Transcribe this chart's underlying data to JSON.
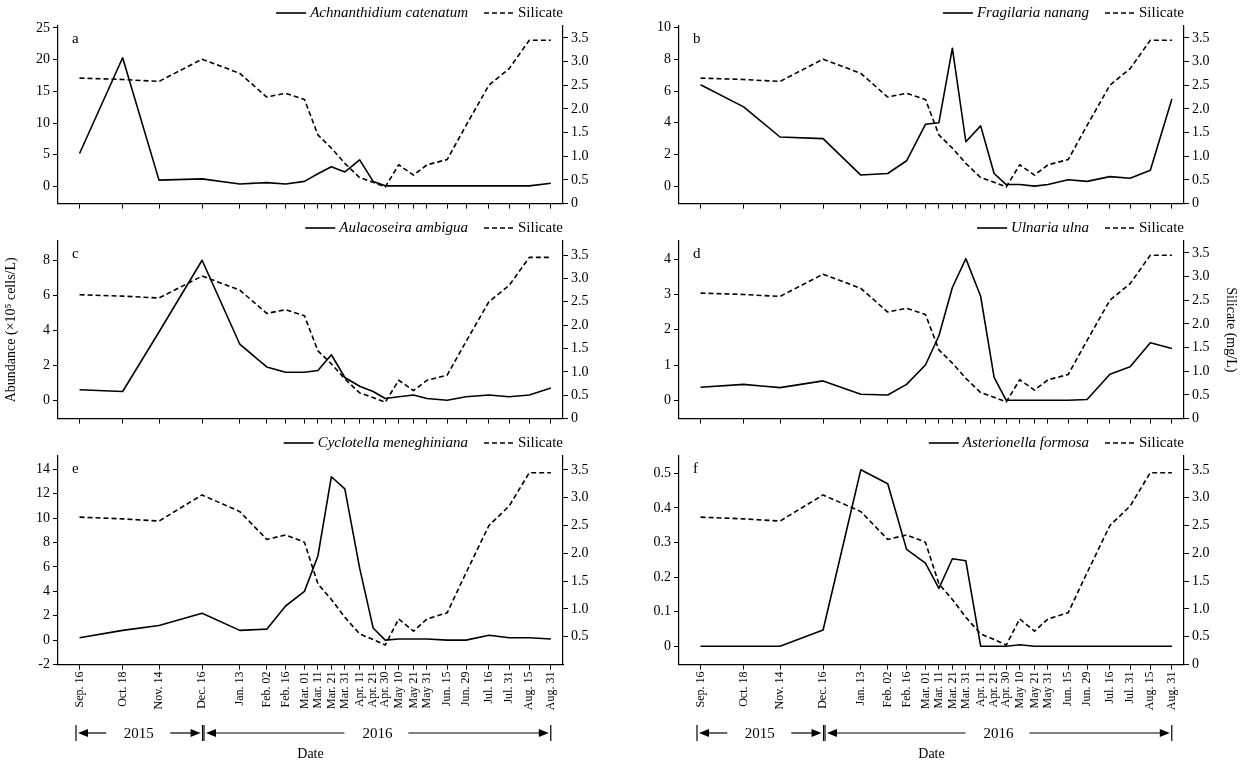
{
  "chart_data": [
    {
      "type": "line",
      "annotations": [
        "a"
      ],
      "x": [
        "2015-09-16",
        "2015-10-18",
        "2015-11-14",
        "2015-12-16",
        "2016-01-13",
        "2016-02-02",
        "2016-02-16",
        "2016-03-01",
        "2016-03-11",
        "2016-03-21",
        "2016-03-31",
        "2016-04-11",
        "2016-04-21",
        "2016-04-30",
        "2016-05-10",
        "2016-05-21",
        "2016-05-31",
        "2016-06-15",
        "2016-06-29",
        "2016-07-16",
        "2016-07-31",
        "2016-08-15",
        "2016-08-31"
      ],
      "series": [
        {
          "name": "Achnanthidium catenatum",
          "color": "#000000",
          "line_style": "solid",
          "values": [
            5.2,
            20.3,
            1.0,
            1.2,
            0.4,
            0.6,
            0.4,
            0.8,
            2.0,
            3.1,
            2.3,
            4.2,
            0.8,
            0.1,
            0.1,
            0.1,
            0.1,
            0.1,
            0.1,
            0.1,
            0.1,
            0.1,
            0.5
          ]
        },
        {
          "name": "Silicate",
          "color": "#000000",
          "line_style": "dashed",
          "axis": "y2",
          "values": [
            2.65,
            2.62,
            2.58,
            3.05,
            2.75,
            2.25,
            2.33,
            2.2,
            1.45,
            1.17,
            0.85,
            0.55,
            0.45,
            0.35,
            0.82,
            0.6,
            0.82,
            0.93,
            1.65,
            2.5,
            2.85,
            3.45,
            3.45
          ]
        }
      ],
      "xlim": [
        "2015-08-31",
        "2016-09-09"
      ],
      "xticks": [
        {
          "value": "2015-09-16",
          "label": null
        },
        {
          "value": "2015-10-18",
          "label": null
        },
        {
          "value": "2015-11-14",
          "label": null
        },
        {
          "value": "2015-12-16",
          "label": null
        },
        {
          "value": "2016-01-13",
          "label": null
        },
        {
          "value": "2016-02-02",
          "label": null
        },
        {
          "value": "2016-02-16",
          "label": null
        },
        {
          "value": "2016-03-01",
          "label": null
        },
        {
          "value": "2016-03-11",
          "label": null
        },
        {
          "value": "2016-03-21",
          "label": null
        },
        {
          "value": "2016-03-31",
          "label": null
        },
        {
          "value": "2016-04-11",
          "label": null
        },
        {
          "value": "2016-04-21",
          "label": null
        },
        {
          "value": "2016-04-30",
          "label": null
        },
        {
          "value": "2016-05-10",
          "label": null
        },
        {
          "value": "2016-05-21",
          "label": null
        },
        {
          "value": "2016-05-31",
          "label": null
        },
        {
          "value": "2016-06-15",
          "label": null
        },
        {
          "value": "2016-06-29",
          "label": null
        },
        {
          "value": "2016-07-16",
          "label": null
        },
        {
          "value": "2016-07-31",
          "label": null
        },
        {
          "value": "2016-08-15",
          "label": null
        },
        {
          "value": "2016-08-31",
          "label": null
        }
      ],
      "ylim": [
        -2.7,
        25.3
      ],
      "yticks": [
        0,
        5,
        10,
        15,
        20,
        25
      ],
      "y2lim": [
        0,
        3.75
      ],
      "y2ticks": [
        {
          "value": 0,
          "label": "0"
        },
        {
          "value": 0.5,
          "label": "0.5"
        },
        {
          "value": 1,
          "label": "1.0"
        },
        {
          "value": 1.5,
          "label": "1.5"
        },
        {
          "value": 2,
          "label": "2.0"
        },
        {
          "value": 2.5,
          "label": "2.5"
        },
        {
          "value": 3,
          "label": "3.0"
        },
        {
          "value": 3.5,
          "label": "3.5"
        }
      ],
      "tick_labels": "y",
      "legend": "top right",
      "marker": "none"
    },
    {
      "type": "line",
      "annotations": [
        "b"
      ],
      "x": [
        "2015-09-16",
        "2015-10-18",
        "2015-11-14",
        "2015-12-16",
        "2016-01-13",
        "2016-02-02",
        "2016-02-16",
        "2016-03-01",
        "2016-03-11",
        "2016-03-21",
        "2016-03-31",
        "2016-04-11",
        "2016-04-21",
        "2016-04-30",
        "2016-05-10",
        "2016-05-21",
        "2016-05-31",
        "2016-06-15",
        "2016-06-29",
        "2016-07-16",
        "2016-07-31",
        "2016-08-15",
        "2016-08-31"
      ],
      "series": [
        {
          "name": "Fragilaria nanang",
          "color": "#000000",
          "line_style": "solid",
          "values": [
            6.4,
            5.0,
            3.1,
            3.0,
            0.7,
            0.8,
            1.6,
            3.9,
            4.0,
            8.7,
            2.8,
            3.8,
            0.8,
            0.1,
            0.1,
            0.0,
            0.1,
            0.4,
            0.3,
            0.6,
            0.5,
            1.0,
            5.5
          ]
        },
        {
          "name": "Silicate",
          "color": "#000000",
          "line_style": "dashed",
          "axis": "y2",
          "values": [
            2.65,
            2.62,
            2.58,
            3.05,
            2.75,
            2.25,
            2.33,
            2.2,
            1.45,
            1.17,
            0.85,
            0.55,
            0.45,
            0.35,
            0.82,
            0.6,
            0.82,
            0.93,
            1.65,
            2.5,
            2.85,
            3.45,
            3.45
          ]
        }
      ],
      "xlim": [
        "2015-08-31",
        "2016-09-09"
      ],
      "xticks": [
        {
          "value": "2015-09-16",
          "label": null
        },
        {
          "value": "2015-10-18",
          "label": null
        },
        {
          "value": "2015-11-14",
          "label": null
        },
        {
          "value": "2015-12-16",
          "label": null
        },
        {
          "value": "2016-01-13",
          "label": null
        },
        {
          "value": "2016-02-02",
          "label": null
        },
        {
          "value": "2016-02-16",
          "label": null
        },
        {
          "value": "2016-03-01",
          "label": null
        },
        {
          "value": "2016-03-11",
          "label": null
        },
        {
          "value": "2016-03-21",
          "label": null
        },
        {
          "value": "2016-03-31",
          "label": null
        },
        {
          "value": "2016-04-11",
          "label": null
        },
        {
          "value": "2016-04-21",
          "label": null
        },
        {
          "value": "2016-04-30",
          "label": null
        },
        {
          "value": "2016-05-10",
          "label": null
        },
        {
          "value": "2016-05-21",
          "label": null
        },
        {
          "value": "2016-05-31",
          "label": null
        },
        {
          "value": "2016-06-15",
          "label": null
        },
        {
          "value": "2016-06-29",
          "label": null
        },
        {
          "value": "2016-07-16",
          "label": null
        },
        {
          "value": "2016-07-31",
          "label": null
        },
        {
          "value": "2016-08-15",
          "label": null
        },
        {
          "value": "2016-08-31",
          "label": null
        }
      ],
      "ylim": [
        -1.1,
        10.1
      ],
      "yticks": [
        0,
        2,
        4,
        6,
        8,
        10
      ],
      "y2lim": [
        0,
        3.75
      ],
      "y2ticks": [
        {
          "value": 0,
          "label": "0"
        },
        {
          "value": 0.5,
          "label": "0.5"
        },
        {
          "value": 1,
          "label": "1.0"
        },
        {
          "value": 1.5,
          "label": "1.5"
        },
        {
          "value": 2,
          "label": "2.0"
        },
        {
          "value": 2.5,
          "label": "2.5"
        },
        {
          "value": 3,
          "label": "3.0"
        },
        {
          "value": 3.5,
          "label": "3.5"
        }
      ],
      "tick_labels": "y",
      "legend": "top right",
      "marker": "none"
    },
    {
      "type": "line",
      "annotations": [
        "c"
      ],
      "ylabel": "Abundance (×10⁵ cells/L)",
      "x": [
        "2015-09-16",
        "2015-10-18",
        "2015-11-14",
        "2015-12-16",
        "2016-01-13",
        "2016-02-02",
        "2016-02-16",
        "2016-03-01",
        "2016-03-11",
        "2016-03-21",
        "2016-03-31",
        "2016-04-11",
        "2016-04-21",
        "2016-04-30",
        "2016-05-10",
        "2016-05-21",
        "2016-05-31",
        "2016-06-15",
        "2016-06-29",
        "2016-07-16",
        "2016-07-31",
        "2016-08-15",
        "2016-08-31"
      ],
      "series": [
        {
          "name": "Aulacoseira ambigua",
          "color": "#000000",
          "line_style": "solid",
          "values": [
            0.6,
            0.5,
            3.9,
            8.0,
            3.2,
            1.9,
            1.6,
            1.6,
            1.7,
            2.6,
            1.3,
            0.8,
            0.5,
            0.1,
            0.2,
            0.3,
            0.1,
            0.0,
            0.2,
            0.3,
            0.2,
            0.3,
            0.7
          ]
        },
        {
          "name": "Silicate",
          "color": "#000000",
          "line_style": "dashed",
          "axis": "y2",
          "values": [
            2.65,
            2.62,
            2.58,
            3.05,
            2.75,
            2.25,
            2.33,
            2.2,
            1.45,
            1.17,
            0.85,
            0.55,
            0.45,
            0.35,
            0.82,
            0.6,
            0.82,
            0.93,
            1.65,
            2.5,
            2.85,
            3.45,
            3.45
          ]
        }
      ],
      "xlim": [
        "2015-08-31",
        "2016-09-09"
      ],
      "xticks": [
        {
          "value": "2015-09-16",
          "label": null
        },
        {
          "value": "2015-10-18",
          "label": null
        },
        {
          "value": "2015-11-14",
          "label": null
        },
        {
          "value": "2015-12-16",
          "label": null
        },
        {
          "value": "2016-01-13",
          "label": null
        },
        {
          "value": "2016-02-02",
          "label": null
        },
        {
          "value": "2016-02-16",
          "label": null
        },
        {
          "value": "2016-03-01",
          "label": null
        },
        {
          "value": "2016-03-11",
          "label": null
        },
        {
          "value": "2016-03-21",
          "label": null
        },
        {
          "value": "2016-03-31",
          "label": null
        },
        {
          "value": "2016-04-11",
          "label": null
        },
        {
          "value": "2016-04-21",
          "label": null
        },
        {
          "value": "2016-04-30",
          "label": null
        },
        {
          "value": "2016-05-10",
          "label": null
        },
        {
          "value": "2016-05-21",
          "label": null
        },
        {
          "value": "2016-05-31",
          "label": null
        },
        {
          "value": "2016-06-15",
          "label": null
        },
        {
          "value": "2016-06-29",
          "label": null
        },
        {
          "value": "2016-07-16",
          "label": null
        },
        {
          "value": "2016-07-31",
          "label": null
        },
        {
          "value": "2016-08-15",
          "label": null
        },
        {
          "value": "2016-08-31",
          "label": null
        }
      ],
      "ylim": [
        -1.05,
        9.1
      ],
      "yticks": [
        0,
        2,
        4,
        6,
        8
      ],
      "y2lim": [
        0,
        3.8
      ],
      "y2ticks": [
        {
          "value": 0,
          "label": "0"
        },
        {
          "value": 0.5,
          "label": "0.5"
        },
        {
          "value": 1,
          "label": "1.0"
        },
        {
          "value": 1.5,
          "label": "1.5"
        },
        {
          "value": 2,
          "label": "2.0"
        },
        {
          "value": 2.5,
          "label": "2.5"
        },
        {
          "value": 3,
          "label": "3.0"
        },
        {
          "value": 3.5,
          "label": "3.5"
        }
      ],
      "tick_labels": "y",
      "legend": "top right",
      "marker": "none"
    },
    {
      "type": "line",
      "annotations": [
        "d"
      ],
      "y2label": "Silicate (mg/L)",
      "x": [
        "2015-09-16",
        "2015-10-18",
        "2015-11-14",
        "2015-12-16",
        "2016-01-13",
        "2016-02-02",
        "2016-02-16",
        "2016-03-01",
        "2016-03-11",
        "2016-03-21",
        "2016-03-31",
        "2016-04-11",
        "2016-04-21",
        "2016-04-30",
        "2016-05-10",
        "2016-05-21",
        "2016-05-31",
        "2016-06-15",
        "2016-06-29",
        "2016-07-16",
        "2016-07-31",
        "2016-08-15",
        "2016-08-31"
      ],
      "series": [
        {
          "name": "Ulnaria ulna",
          "color": "#000000",
          "line_style": "solid",
          "values": [
            0.37,
            0.45,
            0.36,
            0.55,
            0.17,
            0.15,
            0.45,
            1.0,
            1.83,
            3.2,
            4.02,
            2.95,
            0.65,
            0,
            0,
            0,
            0,
            0,
            0.02,
            0.74,
            0.95,
            1.63,
            1.47
          ]
        },
        {
          "name": "Silicate",
          "color": "#000000",
          "line_style": "dashed",
          "axis": "y2",
          "values": [
            2.65,
            2.62,
            2.58,
            3.05,
            2.75,
            2.25,
            2.33,
            2.2,
            1.45,
            1.17,
            0.85,
            0.55,
            0.45,
            0.35,
            0.82,
            0.6,
            0.82,
            0.93,
            1.65,
            2.5,
            2.85,
            3.45,
            3.45
          ]
        }
      ],
      "xlim": [
        "2015-08-31",
        "2016-09-09"
      ],
      "xticks": [
        {
          "value": "2015-09-16",
          "label": null
        },
        {
          "value": "2015-10-18",
          "label": null
        },
        {
          "value": "2015-11-14",
          "label": null
        },
        {
          "value": "2015-12-16",
          "label": null
        },
        {
          "value": "2016-01-13",
          "label": null
        },
        {
          "value": "2016-02-02",
          "label": null
        },
        {
          "value": "2016-02-16",
          "label": null
        },
        {
          "value": "2016-03-01",
          "label": null
        },
        {
          "value": "2016-03-11",
          "label": null
        },
        {
          "value": "2016-03-21",
          "label": null
        },
        {
          "value": "2016-03-31",
          "label": null
        },
        {
          "value": "2016-04-11",
          "label": null
        },
        {
          "value": "2016-04-21",
          "label": null
        },
        {
          "value": "2016-04-30",
          "label": null
        },
        {
          "value": "2016-05-10",
          "label": null
        },
        {
          "value": "2016-05-21",
          "label": null
        },
        {
          "value": "2016-05-31",
          "label": null
        },
        {
          "value": "2016-06-15",
          "label": null
        },
        {
          "value": "2016-06-29",
          "label": null
        },
        {
          "value": "2016-07-16",
          "label": null
        },
        {
          "value": "2016-07-31",
          "label": null
        },
        {
          "value": "2016-08-15",
          "label": null
        },
        {
          "value": "2016-08-31",
          "label": null
        }
      ],
      "ylim": [
        -0.52,
        4.52
      ],
      "yticks": [
        0,
        1,
        2,
        3,
        4
      ],
      "y2lim": [
        0,
        3.75
      ],
      "y2ticks": [
        {
          "value": 0,
          "label": "0"
        },
        {
          "value": 0.5,
          "label": "0.5"
        },
        {
          "value": 1,
          "label": "1.0"
        },
        {
          "value": 1.5,
          "label": "1.5"
        },
        {
          "value": 2,
          "label": "2.0"
        },
        {
          "value": 2.5,
          "label": "2.5"
        },
        {
          "value": 3,
          "label": "3.0"
        },
        {
          "value": 3.5,
          "label": "3.5"
        }
      ],
      "tick_labels": "y",
      "legend": "top right",
      "marker": "none"
    },
    {
      "type": "line",
      "annotations": [
        "e",
        "2015",
        "2016"
      ],
      "xlabel": "Date",
      "x": [
        "2015-09-16",
        "2015-10-18",
        "2015-11-14",
        "2015-12-16",
        "2016-01-13",
        "2016-02-02",
        "2016-02-16",
        "2016-03-01",
        "2016-03-11",
        "2016-03-21",
        "2016-03-31",
        "2016-04-11",
        "2016-04-21",
        "2016-04-30",
        "2016-05-10",
        "2016-05-21",
        "2016-05-31",
        "2016-06-15",
        "2016-06-29",
        "2016-07-16",
        "2016-07-31",
        "2016-08-15",
        "2016-08-31"
      ],
      "series": [
        {
          "name": "Cyclotella meneghiniana",
          "color": "#000000",
          "line_style": "solid",
          "values": [
            0.2,
            0.8,
            1.2,
            2.2,
            0.8,
            0.9,
            2.8,
            4.0,
            6.9,
            13.4,
            12.4,
            5.9,
            1.0,
            0,
            0.1,
            0.1,
            0.1,
            0,
            0,
            0.4,
            0.2,
            0.2,
            0.1
          ]
        },
        {
          "name": "Silicate",
          "color": "#000000",
          "line_style": "dashed",
          "axis": "y2",
          "values": [
            2.65,
            2.62,
            2.58,
            3.05,
            2.75,
            2.25,
            2.33,
            2.2,
            1.45,
            1.17,
            0.85,
            0.55,
            0.45,
            0.35,
            0.82,
            0.6,
            0.82,
            0.93,
            1.65,
            2.5,
            2.85,
            3.45,
            3.45
          ]
        }
      ],
      "xlim": [
        "2015-08-31",
        "2016-09-09"
      ],
      "xticks": [
        {
          "value": "2015-09-16",
          "label": "Sep. 16"
        },
        {
          "value": "2015-10-18",
          "label": "Oct. 18"
        },
        {
          "value": "2015-11-14",
          "label": "Nov. 14"
        },
        {
          "value": "2015-12-16",
          "label": "Dec. 16"
        },
        {
          "value": "2016-01-13",
          "label": "Jan. 13"
        },
        {
          "value": "2016-02-02",
          "label": "Feb. 02"
        },
        {
          "value": "2016-02-16",
          "label": "Feb. 16"
        },
        {
          "value": "2016-03-01",
          "label": "Mar. 01"
        },
        {
          "value": "2016-03-11",
          "label": "Mar. 11"
        },
        {
          "value": "2016-03-21",
          "label": "Mar. 21"
        },
        {
          "value": "2016-03-31",
          "label": "Mar. 31"
        },
        {
          "value": "2016-04-11",
          "label": "Apr. 11"
        },
        {
          "value": "2016-04-21",
          "label": "Apr. 21"
        },
        {
          "value": "2016-04-30",
          "label": "Apr. 30"
        },
        {
          "value": "2016-05-10",
          "label": "May 10"
        },
        {
          "value": "2016-05-21",
          "label": "May 21"
        },
        {
          "value": "2016-05-31",
          "label": "May 31"
        },
        {
          "value": "2016-06-15",
          "label": "Jun. 15"
        },
        {
          "value": "2016-06-29",
          "label": "Jun. 29"
        },
        {
          "value": "2016-07-16",
          "label": "Jul. 16"
        },
        {
          "value": "2016-07-31",
          "label": "Jul. 31"
        },
        {
          "value": "2016-08-15",
          "label": "Aug. 15"
        },
        {
          "value": "2016-08-31",
          "label": "Aug. 31"
        }
      ],
      "ylim": [
        -2,
        15.1
      ],
      "yticks": [
        -2,
        0,
        2,
        4,
        6,
        8,
        10,
        12,
        14
      ],
      "y2lim": [
        0,
        3.75
      ],
      "y2ticks": [
        {
          "value": 0.5,
          "label": "0.5"
        },
        {
          "value": 1,
          "label": "1.0"
        },
        {
          "value": 1.5,
          "label": "1.5"
        },
        {
          "value": 2,
          "label": "2.0"
        },
        {
          "value": 2.5,
          "label": "2.5"
        },
        {
          "value": 3,
          "label": "3.0"
        },
        {
          "value": 3.5,
          "label": "3.5"
        }
      ],
      "legend": "top right",
      "marker": "none"
    },
    {
      "type": "line",
      "annotations": [
        "f",
        "2015",
        "2016"
      ],
      "xlabel": "Date",
      "x": [
        "2015-09-16",
        "2015-10-18",
        "2015-11-14",
        "2015-12-16",
        "2016-01-13",
        "2016-02-02",
        "2016-02-16",
        "2016-03-01",
        "2016-03-11",
        "2016-03-21",
        "2016-03-31",
        "2016-04-11",
        "2016-04-21",
        "2016-04-30",
        "2016-05-10",
        "2016-05-21",
        "2016-05-31",
        "2016-06-15",
        "2016-06-29",
        "2016-07-16",
        "2016-07-31",
        "2016-08-15",
        "2016-08-31"
      ],
      "series": [
        {
          "name": "Asterionella formosa",
          "color": "#000000",
          "line_style": "solid",
          "values": [
            0,
            0,
            0,
            0.047,
            0.51,
            0.47,
            0.28,
            0.24,
            0.167,
            0.253,
            0.247,
            0,
            0,
            0,
            0.004,
            0,
            0,
            0,
            0,
            0,
            0,
            0,
            0
          ]
        },
        {
          "name": "Silicate",
          "color": "#000000",
          "line_style": "dashed",
          "axis": "y2",
          "values": [
            2.65,
            2.62,
            2.58,
            3.05,
            2.75,
            2.25,
            2.33,
            2.2,
            1.45,
            1.17,
            0.85,
            0.55,
            0.45,
            0.35,
            0.82,
            0.6,
            0.82,
            0.93,
            1.65,
            2.5,
            2.85,
            3.45,
            3.45
          ]
        }
      ],
      "xlim": [
        "2015-08-31",
        "2016-09-09"
      ],
      "xticks": [
        {
          "value": "2015-09-16",
          "label": "Sep. 16"
        },
        {
          "value": "2015-10-18",
          "label": "Oct. 18"
        },
        {
          "value": "2015-11-14",
          "label": "Nov. 14"
        },
        {
          "value": "2015-12-16",
          "label": "Dec. 16"
        },
        {
          "value": "2016-01-13",
          "label": "Jan. 13"
        },
        {
          "value": "2016-02-02",
          "label": "Feb. 02"
        },
        {
          "value": "2016-02-16",
          "label": "Feb. 16"
        },
        {
          "value": "2016-03-01",
          "label": "Mar. 01"
        },
        {
          "value": "2016-03-11",
          "label": "Mar. 11"
        },
        {
          "value": "2016-03-21",
          "label": "Mar. 21"
        },
        {
          "value": "2016-03-31",
          "label": "Mar. 31"
        },
        {
          "value": "2016-04-11",
          "label": "Apr. 11"
        },
        {
          "value": "2016-04-21",
          "label": "Apr. 21"
        },
        {
          "value": "2016-04-30",
          "label": "Apr. 30"
        },
        {
          "value": "2016-05-10",
          "label": "May 10"
        },
        {
          "value": "2016-05-21",
          "label": "May 21"
        },
        {
          "value": "2016-05-31",
          "label": "May 31"
        },
        {
          "value": "2016-06-15",
          "label": "Jun. 15"
        },
        {
          "value": "2016-06-29",
          "label": "Jun. 29"
        },
        {
          "value": "2016-07-16",
          "label": "Jul. 16"
        },
        {
          "value": "2016-07-31",
          "label": "Jul. 31"
        },
        {
          "value": "2016-08-15",
          "label": "Aug. 15"
        },
        {
          "value": "2016-08-31",
          "label": "Aug. 31"
        }
      ],
      "ylim": [
        -0.053,
        0.55
      ],
      "yticks": [
        0,
        0.1,
        0.2,
        0.3,
        0.4,
        0.5
      ],
      "y2lim": [
        0,
        3.75
      ],
      "y2ticks": [
        {
          "value": 0,
          "label": "0"
        },
        {
          "value": 0.5,
          "label": "0.5"
        },
        {
          "value": 1,
          "label": "1.0"
        },
        {
          "value": 1.5,
          "label": "1.5"
        },
        {
          "value": 2,
          "label": "2.0"
        },
        {
          "value": 2.5,
          "label": "2.5"
        },
        {
          "value": 3,
          "label": "3.0"
        },
        {
          "value": 3.5,
          "label": "3.5"
        }
      ],
      "legend": "top right",
      "marker": "none"
    }
  ]
}
